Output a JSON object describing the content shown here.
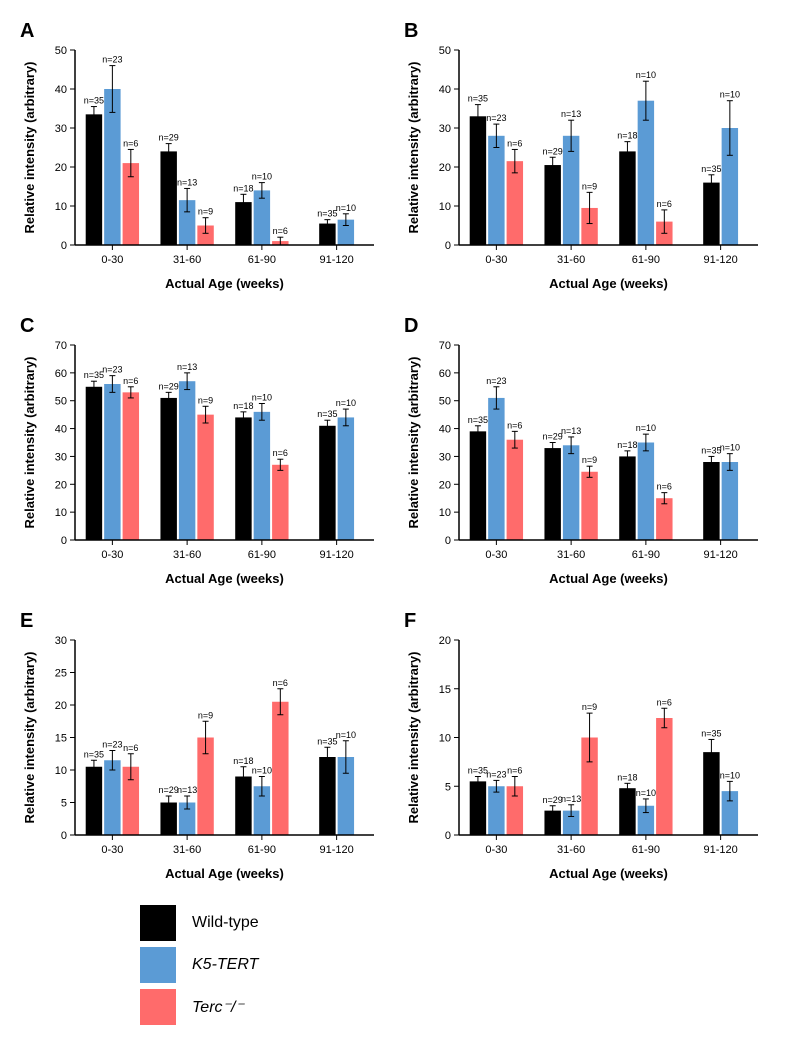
{
  "global": {
    "xlabel": "Actual Age (weeks)",
    "ylabel": "Relative intensity (arbitrary)",
    "categories": [
      "0-30",
      "31-60",
      "61-90",
      "91-120"
    ],
    "series_names": [
      "Wild-type",
      "K5-TERT",
      "Terc⁻/⁻"
    ],
    "colors": {
      "wt": "#000000",
      "k5": "#5b9bd5",
      "terc": "#ff6b6b"
    },
    "axis_color": "#000000",
    "background_color": "#ffffff",
    "bar_width": 0.7,
    "label_fontsize": 13,
    "tick_fontsize": 11,
    "n_fontsize": 9,
    "panel_label_fontsize": 20
  },
  "panels": {
    "A": {
      "ylim": [
        0,
        50
      ],
      "ytick_step": 10,
      "groups": [
        {
          "wt": {
            "v": 33.5,
            "e": 2,
            "n": 35
          },
          "k5": {
            "v": 40,
            "e": 6,
            "n": 23
          },
          "terc": {
            "v": 21,
            "e": 3.5,
            "n": 6
          }
        },
        {
          "wt": {
            "v": 24,
            "e": 2,
            "n": 29
          },
          "k5": {
            "v": 11.5,
            "e": 3,
            "n": 13
          },
          "terc": {
            "v": 5,
            "e": 2,
            "n": 9
          }
        },
        {
          "wt": {
            "v": 11,
            "e": 2,
            "n": 18
          },
          "k5": {
            "v": 14,
            "e": 2,
            "n": 10
          },
          "terc": {
            "v": 1,
            "e": 1,
            "n": 6
          }
        },
        {
          "wt": {
            "v": 5.5,
            "e": 1,
            "n": 35
          },
          "k5": {
            "v": 6.5,
            "e": 1.5,
            "n": 10
          },
          "terc": null
        }
      ]
    },
    "B": {
      "ylim": [
        0,
        50
      ],
      "ytick_step": 10,
      "groups": [
        {
          "wt": {
            "v": 33,
            "e": 3,
            "n": 35
          },
          "k5": {
            "v": 28,
            "e": 3,
            "n": 23
          },
          "terc": {
            "v": 21.5,
            "e": 3,
            "n": 6
          }
        },
        {
          "wt": {
            "v": 20.5,
            "e": 2,
            "n": 29
          },
          "k5": {
            "v": 28,
            "e": 4,
            "n": 13
          },
          "terc": {
            "v": 9.5,
            "e": 4,
            "n": 9
          }
        },
        {
          "wt": {
            "v": 24,
            "e": 2.5,
            "n": 18
          },
          "k5": {
            "v": 37,
            "e": 5,
            "n": 10
          },
          "terc": {
            "v": 6,
            "e": 3,
            "n": 6
          }
        },
        {
          "wt": {
            "v": 16,
            "e": 2,
            "n": 35
          },
          "k5": {
            "v": 30,
            "e": 7,
            "n": 10
          },
          "terc": null
        }
      ]
    },
    "C": {
      "ylim": [
        0,
        70
      ],
      "ytick_step": 10,
      "groups": [
        {
          "wt": {
            "v": 55,
            "e": 2,
            "n": 35
          },
          "k5": {
            "v": 56,
            "e": 3,
            "n": 23
          },
          "terc": {
            "v": 53,
            "e": 2,
            "n": 6
          }
        },
        {
          "wt": {
            "v": 51,
            "e": 2,
            "n": 29
          },
          "k5": {
            "v": 57,
            "e": 3,
            "n": 13
          },
          "terc": {
            "v": 45,
            "e": 3,
            "n": 9
          }
        },
        {
          "wt": {
            "v": 44,
            "e": 2,
            "n": 18
          },
          "k5": {
            "v": 46,
            "e": 3,
            "n": 10
          },
          "terc": {
            "v": 27,
            "e": 2,
            "n": 6
          }
        },
        {
          "wt": {
            "v": 41,
            "e": 2,
            "n": 35
          },
          "k5": {
            "v": 44,
            "e": 3,
            "n": 10
          },
          "terc": null
        }
      ]
    },
    "D": {
      "ylim": [
        0,
        70
      ],
      "ytick_step": 10,
      "groups": [
        {
          "wt": {
            "v": 39,
            "e": 2,
            "n": 35
          },
          "k5": {
            "v": 51,
            "e": 4,
            "n": 23
          },
          "terc": {
            "v": 36,
            "e": 3,
            "n": 6
          }
        },
        {
          "wt": {
            "v": 33,
            "e": 2,
            "n": 29
          },
          "k5": {
            "v": 34,
            "e": 3,
            "n": 13
          },
          "terc": {
            "v": 24.5,
            "e": 2,
            "n": 9
          }
        },
        {
          "wt": {
            "v": 30,
            "e": 2,
            "n": 18
          },
          "k5": {
            "v": 35,
            "e": 3,
            "n": 10
          },
          "terc": {
            "v": 15,
            "e": 2,
            "n": 6
          }
        },
        {
          "wt": {
            "v": 28,
            "e": 2,
            "n": 35
          },
          "k5": {
            "v": 28,
            "e": 3,
            "n": 10
          },
          "terc": null
        }
      ]
    },
    "E": {
      "ylim": [
        0,
        30
      ],
      "ytick_step": 5,
      "groups": [
        {
          "wt": {
            "v": 10.5,
            "e": 1,
            "n": 35
          },
          "k5": {
            "v": 11.5,
            "e": 1.5,
            "n": 23
          },
          "terc": {
            "v": 10.5,
            "e": 2,
            "n": 6
          }
        },
        {
          "wt": {
            "v": 5,
            "e": 1,
            "n": 29
          },
          "k5": {
            "v": 5,
            "e": 1,
            "n": 13
          },
          "terc": {
            "v": 15,
            "e": 2.5,
            "n": 9
          }
        },
        {
          "wt": {
            "v": 9,
            "e": 1.5,
            "n": 18
          },
          "k5": {
            "v": 7.5,
            "e": 1.5,
            "n": 10
          },
          "terc": {
            "v": 20.5,
            "e": 2,
            "n": 6
          }
        },
        {
          "wt": {
            "v": 12,
            "e": 1.5,
            "n": 35
          },
          "k5": {
            "v": 12,
            "e": 2.5,
            "n": 10
          },
          "terc": null
        }
      ]
    },
    "F": {
      "ylim": [
        0,
        20
      ],
      "ytick_step": 5,
      "groups": [
        {
          "wt": {
            "v": 5.5,
            "e": 0.5,
            "n": 35
          },
          "k5": {
            "v": 5,
            "e": 0.6,
            "n": 23
          },
          "terc": {
            "v": 5,
            "e": 1,
            "n": 6
          }
        },
        {
          "wt": {
            "v": 2.5,
            "e": 0.5,
            "n": 29
          },
          "k5": {
            "v": 2.5,
            "e": 0.6,
            "n": 13
          },
          "terc": {
            "v": 10,
            "e": 2.5,
            "n": 9
          }
        },
        {
          "wt": {
            "v": 4.8,
            "e": 0.5,
            "n": 18
          },
          "k5": {
            "v": 3,
            "e": 0.7,
            "n": 10
          },
          "terc": {
            "v": 12,
            "e": 1,
            "n": 6
          }
        },
        {
          "wt": {
            "v": 8.5,
            "e": 1.3,
            "n": 35
          },
          "k5": {
            "v": 4.5,
            "e": 1,
            "n": 10
          },
          "terc": null
        }
      ]
    }
  },
  "legend": [
    {
      "label": "Wild-type",
      "color": "#000000",
      "style": "normal"
    },
    {
      "label": "K5-TERT",
      "color": "#5b9bd5",
      "style": "italic"
    },
    {
      "label": "Terc⁻/⁻",
      "color": "#ff6b6b",
      "style": "italic"
    }
  ]
}
